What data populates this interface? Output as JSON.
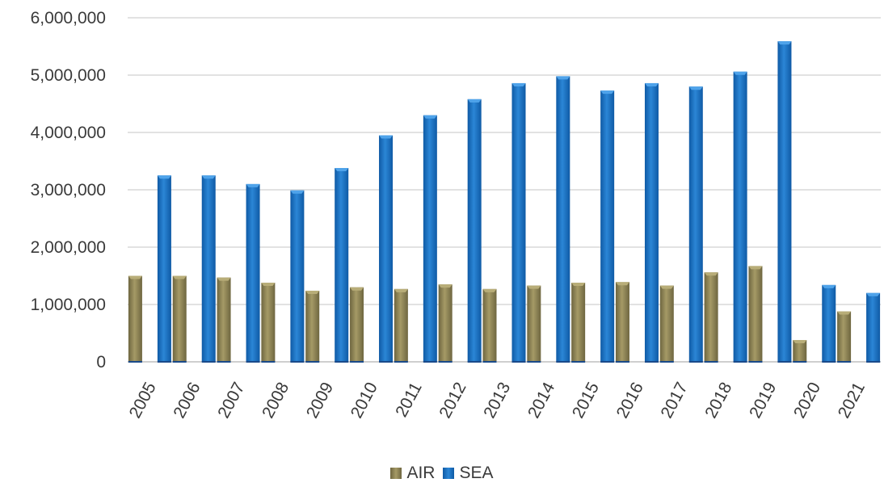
{
  "chart_data": {
    "type": "bar",
    "title": "",
    "xlabel": "",
    "ylabel": "",
    "categories": [
      "2005",
      "2006",
      "2007",
      "2008",
      "2009",
      "2010",
      "2011",
      "2012",
      "2013",
      "2014",
      "2015",
      "2016",
      "2017",
      "2018",
      "2019",
      "2020",
      "2021"
    ],
    "series": [
      {
        "name": "AIR",
        "color": "#8a8052",
        "values": [
          1500000,
          1500000,
          1470000,
          1380000,
          1240000,
          1300000,
          1270000,
          1350000,
          1270000,
          1330000,
          1380000,
          1390000,
          1330000,
          1560000,
          1670000,
          380000,
          880000
        ]
      },
      {
        "name": "SEA",
        "color": "#1a6ec0",
        "values": [
          3250000,
          3250000,
          3100000,
          2990000,
          3380000,
          3950000,
          4300000,
          4580000,
          4860000,
          4980000,
          4730000,
          4860000,
          4800000,
          5060000,
          5590000,
          1340000,
          1200000
        ]
      }
    ],
    "ylim": [
      0,
      6000000
    ],
    "yticks": [
      "0",
      "1,000,000",
      "2,000,000",
      "3,000,000",
      "4,000,000",
      "5,000,000",
      "6,000,000"
    ],
    "grid": true,
    "legend_position": "bottom"
  }
}
